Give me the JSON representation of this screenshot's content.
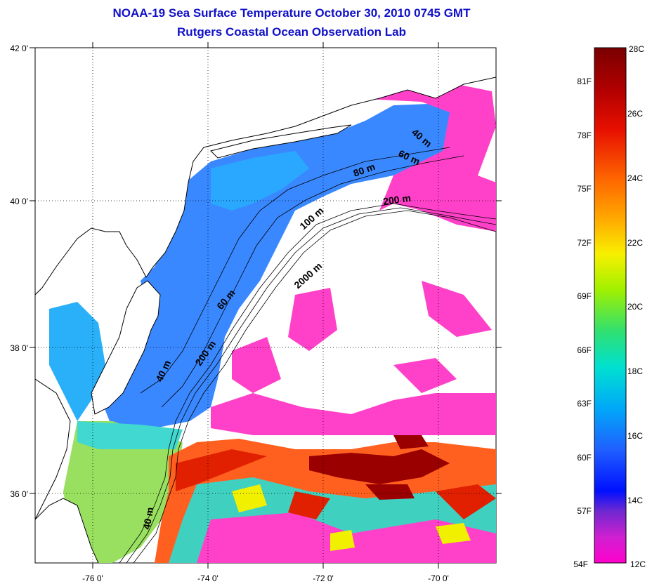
{
  "title_line1": "NOAA-19 Sea Surface Temperature October 30, 2010 0745 GMT",
  "title_line2": "Rutgers Coastal Ocean Observation Lab",
  "map": {
    "lat_labels": [
      "42 0'",
      "40 0'",
      "38 0'",
      "36 0'"
    ],
    "lon_labels": [
      "-76 0'",
      "-74 0'",
      "-72 0'",
      "-70 0'"
    ],
    "depth_labels": [
      "40 m",
      "60 m",
      "80 m",
      "200 m",
      "100 m",
      "2000 m",
      "60 m",
      "200 m",
      "40 m",
      "40 m"
    ]
  },
  "colorbar": {
    "celsius_labels": [
      "28C",
      "26C",
      "24C",
      "22C",
      "20C",
      "18C",
      "16C",
      "14C",
      "12C"
    ],
    "fahrenheit_labels": [
      "81F",
      "78F",
      "75F",
      "72F",
      "69F",
      "66F",
      "63F",
      "60F",
      "57F",
      "54F"
    ],
    "range_c": [
      12,
      28
    ],
    "colors": [
      "#8b0000",
      "#d40000",
      "#ff3000",
      "#ff7a00",
      "#ffc000",
      "#f0f000",
      "#9cf000",
      "#30e060",
      "#00e0c8",
      "#00b4f0",
      "#1e78ff",
      "#1030ff",
      "#2000d0",
      "#a020c0",
      "#ff00c8",
      "#ff40b0"
    ]
  }
}
